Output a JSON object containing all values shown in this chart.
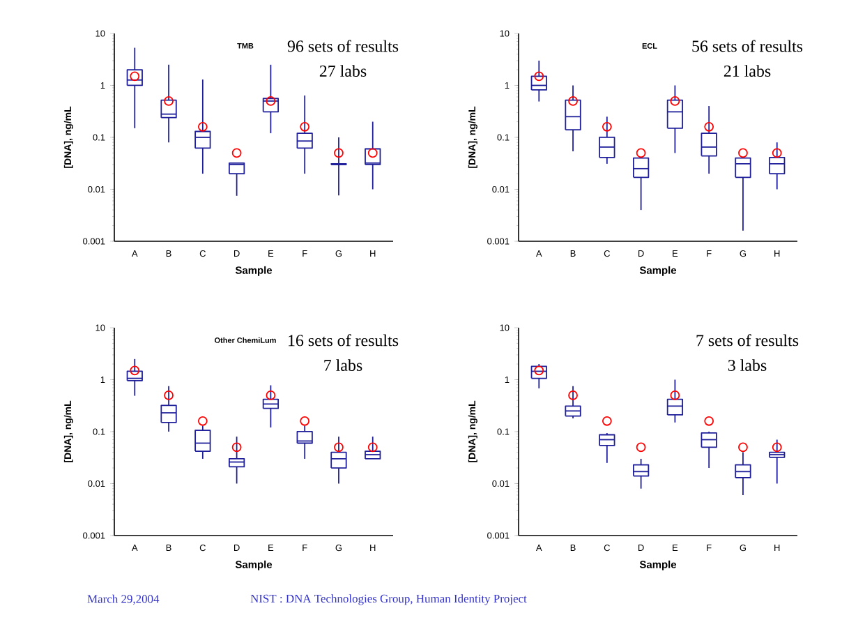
{
  "chart_data": [
    {
      "type": "box",
      "title": "TMB",
      "annotations": [
        "96 sets of results",
        "27 labs"
      ],
      "xlabel": "Sample",
      "ylabel": "[DNA], ng/mL",
      "categories": [
        "A",
        "B",
        "C",
        "D",
        "E",
        "F",
        "G",
        "H"
      ],
      "log": true,
      "ylim": [
        0.001,
        10
      ],
      "yticks": [
        0.001,
        0.01,
        0.1,
        1,
        10
      ],
      "series": [
        {
          "color": "#1f1f9a",
          "boxes": [
            {
              "low": 0.15,
              "q1": 1.0,
              "median": 1.27,
              "q3": 2.0,
              "high": 5.3
            },
            {
              "low": 0.08,
              "q1": 0.24,
              "median": 0.28,
              "q3": 0.52,
              "high": 2.5
            },
            {
              "low": 0.02,
              "q1": 0.062,
              "median": 0.1,
              "q3": 0.13,
              "high": 1.3
            },
            {
              "low": 0.0075,
              "q1": 0.02,
              "median": 0.03,
              "q3": 0.032,
              "high": 0.032
            },
            {
              "low": 0.12,
              "q1": 0.31,
              "median": 0.5,
              "q3": 0.56,
              "high": 2.5
            },
            {
              "low": 0.02,
              "q1": 0.062,
              "median": 0.085,
              "q3": 0.12,
              "high": 0.64
            },
            {
              "low": 0.0076,
              "q1": 0.03,
              "median": 0.03,
              "q3": 0.031,
              "high": 0.1
            },
            {
              "low": 0.01,
              "q1": 0.03,
              "median": 0.032,
              "q3": 0.06,
              "high": 0.2
            }
          ]
        },
        {
          "type": "scatter",
          "color": "#ff0000",
          "marker": "circle",
          "x": [
            "A",
            "B",
            "C",
            "D",
            "E",
            "F",
            "G",
            "H"
          ],
          "values": [
            1.5,
            0.5,
            0.16,
            0.05,
            0.5,
            0.16,
            0.05,
            0.05
          ]
        }
      ]
    },
    {
      "type": "box",
      "title": "ECL",
      "annotations": [
        "56 sets of results",
        "21 labs"
      ],
      "xlabel": "Sample",
      "ylabel": "[DNA], ng/mL",
      "categories": [
        "A",
        "B",
        "C",
        "D",
        "E",
        "F",
        "G",
        "H"
      ],
      "log": true,
      "ylim": [
        0.001,
        10
      ],
      "yticks": [
        0.001,
        0.01,
        0.1,
        1,
        10
      ],
      "series": [
        {
          "color": "#1f1f9a",
          "boxes": [
            {
              "low": 0.49,
              "q1": 0.82,
              "median": 1.0,
              "q3": 1.5,
              "high": 3.0
            },
            {
              "low": 0.054,
              "q1": 0.14,
              "median": 0.25,
              "q3": 0.52,
              "high": 1.0
            },
            {
              "low": 0.031,
              "q1": 0.041,
              "median": 0.065,
              "q3": 0.1,
              "high": 0.25
            },
            {
              "low": 0.004,
              "q1": 0.017,
              "median": 0.025,
              "q3": 0.04,
              "high": 0.04
            },
            {
              "low": 0.05,
              "q1": 0.15,
              "median": 0.31,
              "q3": 0.52,
              "high": 1.0
            },
            {
              "low": 0.02,
              "q1": 0.044,
              "median": 0.065,
              "q3": 0.12,
              "high": 0.4
            },
            {
              "low": 0.0016,
              "q1": 0.017,
              "median": 0.031,
              "q3": 0.04,
              "high": 0.04
            },
            {
              "low": 0.01,
              "q1": 0.02,
              "median": 0.031,
              "q3": 0.041,
              "high": 0.08
            }
          ]
        },
        {
          "type": "scatter",
          "color": "#ff0000",
          "marker": "circle",
          "x": [
            "A",
            "B",
            "C",
            "D",
            "E",
            "F",
            "G",
            "H"
          ],
          "values": [
            1.5,
            0.5,
            0.16,
            0.05,
            0.5,
            0.16,
            0.05,
            0.05
          ]
        }
      ]
    },
    {
      "type": "box",
      "title": "Other ChemiLum",
      "annotations": [
        "16 sets of results",
        "7 labs"
      ],
      "xlabel": "Sample",
      "ylabel": "[DNA], ng/mL",
      "categories": [
        "A",
        "B",
        "C",
        "D",
        "E",
        "F",
        "G",
        "H"
      ],
      "log": true,
      "ylim": [
        0.001,
        10
      ],
      "yticks": [
        0.001,
        0.01,
        0.1,
        1,
        10
      ],
      "series": [
        {
          "color": "#1f1f9a",
          "boxes": [
            {
              "low": 0.49,
              "q1": 0.96,
              "median": 1.06,
              "q3": 1.45,
              "high": 2.5
            },
            {
              "low": 0.1,
              "q1": 0.15,
              "median": 0.23,
              "q3": 0.32,
              "high": 0.75
            },
            {
              "low": 0.03,
              "q1": 0.042,
              "median": 0.06,
              "q3": 0.106,
              "high": 0.13
            },
            {
              "low": 0.01,
              "q1": 0.021,
              "median": 0.026,
              "q3": 0.03,
              "high": 0.08
            },
            {
              "low": 0.12,
              "q1": 0.28,
              "median": 0.34,
              "q3": 0.42,
              "high": 0.78
            },
            {
              "low": 0.03,
              "q1": 0.06,
              "median": 0.066,
              "q3": 0.1,
              "high": 0.13
            },
            {
              "low": 0.01,
              "q1": 0.02,
              "median": 0.03,
              "q3": 0.04,
              "high": 0.08
            },
            {
              "low": 0.03,
              "q1": 0.03,
              "median": 0.036,
              "q3": 0.042,
              "high": 0.08
            }
          ]
        },
        {
          "type": "scatter",
          "color": "#ff0000",
          "marker": "circle",
          "x": [
            "A",
            "B",
            "C",
            "D",
            "E",
            "F",
            "G",
            "H"
          ],
          "values": [
            1.5,
            0.5,
            0.16,
            0.05,
            0.5,
            0.16,
            0.05,
            0.05
          ]
        }
      ]
    },
    {
      "type": "box",
      "annotations": [
        "7 sets of results",
        "3 labs",
        "March 29,2004",
        "NIST : DNA Technologies Group, Human Identity Project"
      ],
      "xlabel": "Sample",
      "ylabel": "[DNA], ng/mL",
      "categories": [
        "A",
        "B",
        "C",
        "D",
        "E",
        "F",
        "G",
        "H"
      ],
      "log": true,
      "ylim": [
        0.001,
        10
      ],
      "yticks": [
        0.001,
        0.01,
        0.1,
        1,
        10
      ],
      "series": [
        {
          "color": "#1f1f9a",
          "boxes": [
            {
              "low": 0.68,
              "q1": 1.06,
              "median": 1.45,
              "q3": 1.8,
              "high": 2.0
            },
            {
              "low": 0.18,
              "q1": 0.2,
              "median": 0.25,
              "q3": 0.31,
              "high": 0.75
            },
            {
              "low": 0.025,
              "q1": 0.054,
              "median": 0.07,
              "q3": 0.087,
              "high": 0.094
            },
            {
              "low": 0.008,
              "q1": 0.014,
              "median": 0.017,
              "q3": 0.023,
              "high": 0.03
            },
            {
              "low": 0.15,
              "q1": 0.21,
              "median": 0.31,
              "q3": 0.42,
              "high": 1.0
            },
            {
              "low": 0.02,
              "q1": 0.05,
              "median": 0.07,
              "q3": 0.094,
              "high": 0.1
            },
            {
              "low": 0.006,
              "q1": 0.013,
              "median": 0.017,
              "q3": 0.023,
              "high": 0.04
            },
            {
              "low": 0.01,
              "q1": 0.032,
              "median": 0.036,
              "q3": 0.04,
              "high": 0.07
            }
          ]
        },
        {
          "type": "scatter",
          "color": "#ff0000",
          "marker": "circle",
          "x": [
            "A",
            "B",
            "C",
            "D",
            "E",
            "F",
            "G",
            "H"
          ],
          "values": [
            1.5,
            0.5,
            0.16,
            0.05,
            0.5,
            0.16,
            0.05,
            0.05
          ]
        }
      ]
    }
  ]
}
